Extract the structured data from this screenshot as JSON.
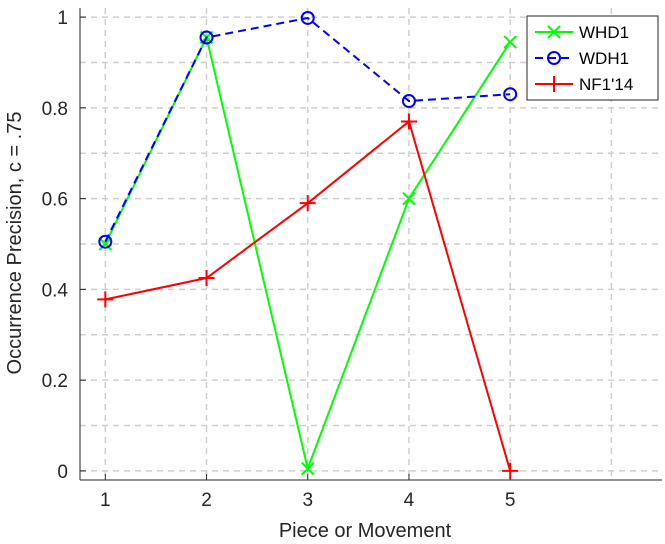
{
  "chart_data": {
    "type": "line",
    "xlabel": "Piece or Movement",
    "ylabel": "Occurrence Precision, c = .75",
    "xlim": [
      0.75,
      6.5
    ],
    "ylim": [
      -0.02,
      1.02
    ],
    "x_ticks": [
      1,
      2,
      3,
      4,
      5
    ],
    "x_tick_labels": [
      "1",
      "2",
      "3",
      "4",
      "5"
    ],
    "y_ticks": [
      0,
      0.2,
      0.4,
      0.6,
      0.8,
      1
    ],
    "y_tick_labels": [
      "0",
      "0.2",
      "0.4",
      "0.6",
      "0.8",
      "1"
    ],
    "grid": true,
    "legend_position": "top-right",
    "series": [
      {
        "name": "WHD1",
        "x": [
          1,
          2,
          3,
          4,
          5
        ],
        "values": [
          0.5,
          0.955,
          0.005,
          0.6,
          0.945
        ],
        "color": "#00ff00",
        "marker": "x",
        "line_style": "solid"
      },
      {
        "name": "WDH1",
        "x": [
          1,
          2,
          3,
          4,
          5
        ],
        "values": [
          0.505,
          0.955,
          0.998,
          0.815,
          0.83
        ],
        "color": "#0000ff",
        "marker": "o",
        "line_style": "dashed"
      },
      {
        "name": "NF1'14",
        "x": [
          1,
          2,
          3,
          4,
          5
        ],
        "values": [
          0.378,
          0.425,
          0.59,
          0.77,
          0.0
        ],
        "color": "#ff0000",
        "marker": "+",
        "line_style": "solid"
      }
    ]
  }
}
